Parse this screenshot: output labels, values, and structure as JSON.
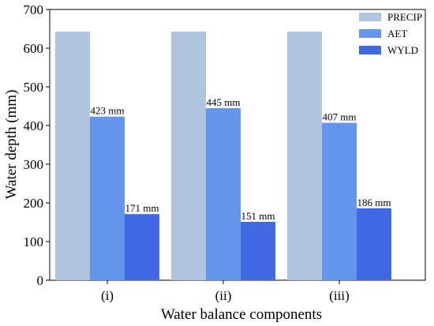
{
  "chart_data": {
    "type": "bar",
    "title": "",
    "xlabel": "Water balance components",
    "ylabel": "Water depth (mm)",
    "categories": [
      "(i)",
      "(ii)",
      "(iii)"
    ],
    "ylim": [
      0,
      700
    ],
    "yticks": [
      0,
      100,
      200,
      300,
      400,
      500,
      600,
      700
    ],
    "legend_position": "top-right",
    "grid": false,
    "series": [
      {
        "name": "PRECIP",
        "color": "#b0c4de",
        "values": [
          643,
          643,
          643
        ],
        "labels": [
          "",
          "",
          ""
        ]
      },
      {
        "name": "AET",
        "color": "#6495ed",
        "values": [
          423,
          445,
          407
        ],
        "labels": [
          "423 mm",
          "445 mm",
          "407 mm"
        ]
      },
      {
        "name": "WYLD",
        "color": "#4169e1",
        "values": [
          171,
          151,
          186
        ],
        "labels": [
          "171 mm",
          "151 mm",
          "186 mm"
        ]
      }
    ]
  }
}
